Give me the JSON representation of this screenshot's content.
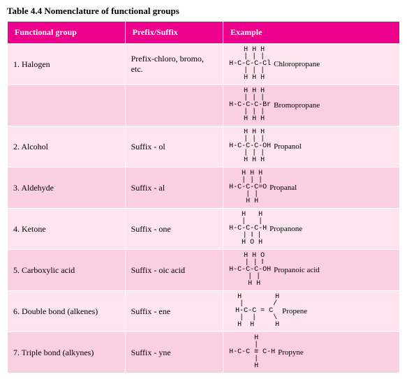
{
  "title": "Table 4.4 Nomenclature of functional groups",
  "headers": {
    "col1": "Functional group",
    "col2": "Prefix/Suffix",
    "col3": "Example"
  },
  "rows": [
    {
      "fg": "1. Halogen",
      "ps": "Prefix-chloro, bromo, etc.",
      "structure": "  H H H\n  | | |\nH-C-C-C-Cl\n  | | |\n  H H H",
      "name": "Chloropropane"
    },
    {
      "fg": "",
      "ps": "",
      "structure": "  H H H\n  | | |\nH-C-C-C-Br\n  | | |\n  H H H",
      "name": "Bromopropane"
    },
    {
      "fg": "2. Alcohol",
      "ps": "Suffix - ol",
      "structure": "  H H H\n  | | |\nH-C-C-C-OH\n  | | |\n  H H H",
      "name": "Propanol"
    },
    {
      "fg": "3. Aldehyde",
      "ps": "Suffix - al",
      "structure": "  H H H\n  | | |\nH-C-C-C=O\n  | |\n  H H",
      "name": "Propanal"
    },
    {
      "fg": "4. Ketone",
      "ps": "Suffix - one",
      "structure": "  H   H\n  |   |\nH-C-C-C-H\n  | ‖ |\n  H O H",
      "name": "Propanone"
    },
    {
      "fg": "5. Carboxylic acid",
      "ps": "Suffix - oic acid",
      "structure": "  H H O\n  | | ‖\nH-C-C-C-OH\n  | |\n  H H",
      "name": "Propanoic acid"
    },
    {
      "fg": "6. Double bond (alkenes)",
      "ps": "Suffix - ene",
      "structure": "  H        H\n  |       /\nH-C-C = C\n  |  |    \\\n  H  H     H",
      "name": "Propene"
    },
    {
      "fg": "7. Triple bond (alkynes)",
      "ps": "Suffix - yne",
      "structure": "  H\n  |\nH-C-C ≡ C-H\n  |\n  H",
      "name": "Propyne"
    }
  ],
  "colors": {
    "header_bg": "#ec008c",
    "header_text": "#ffffff",
    "row_odd": "#fde4ef",
    "row_even": "#fbcfe2",
    "text": "#000000",
    "border": "#ffffff"
  },
  "fonts": {
    "body_family": "Georgia, 'Times New Roman', serif",
    "mono_family": "'Courier New', monospace",
    "title_size": 13,
    "cell_size": 12,
    "structure_size": 10
  }
}
